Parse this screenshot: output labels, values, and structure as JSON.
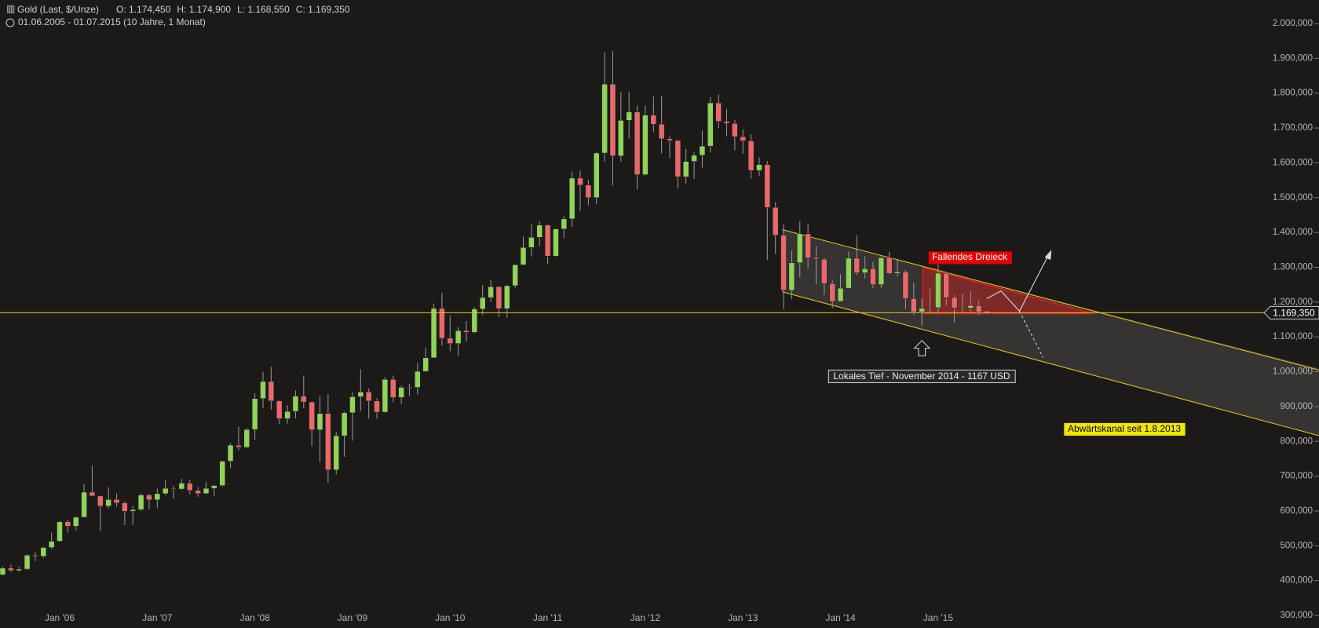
{
  "chart_data": {
    "type": "candlestick",
    "title": "Gold (Last, $/Unze)",
    "header_stats": [
      "O: 1.174,450",
      "H: 1.174,900",
      "L: 1.168,550",
      "C: 1.169,350"
    ],
    "subtitle": "01.06.2005 - 01.07.2015 (10 Jahre, 1 Monat)",
    "categories": [
      null,
      null,
      null,
      null,
      null,
      null,
      null,
      "Jan '06",
      null,
      null,
      null,
      null,
      null,
      null,
      null,
      null,
      null,
      null,
      null,
      "Jan '07",
      null,
      null,
      null,
      null,
      null,
      null,
      null,
      null,
      null,
      null,
      null,
      "Jan '08",
      null,
      null,
      null,
      null,
      null,
      null,
      null,
      null,
      null,
      null,
      null,
      "Jan '09",
      null,
      null,
      null,
      null,
      null,
      null,
      null,
      null,
      null,
      null,
      null,
      "Jan '10",
      null,
      null,
      null,
      null,
      null,
      null,
      null,
      null,
      null,
      null,
      null,
      "Jan '11",
      null,
      null,
      null,
      null,
      null,
      null,
      null,
      null,
      null,
      null,
      null,
      "Jan '12",
      null,
      null,
      null,
      null,
      null,
      null,
      null,
      null,
      null,
      null,
      null,
      "Jan '13",
      null,
      null,
      null,
      null,
      null,
      null,
      null,
      null,
      null,
      null,
      null,
      "Jan '14",
      null,
      null,
      null,
      null,
      null,
      null,
      null,
      null,
      null,
      null,
      null,
      "Jan '15",
      null,
      null,
      null,
      null,
      null,
      null
    ],
    "open": [
      417,
      436,
      429,
      433,
      473,
      470,
      495,
      513,
      569,
      556,
      582,
      654,
      643,
      614,
      633,
      623,
      599,
      604,
      646,
      632,
      650,
      665,
      663,
      680,
      659,
      650,
      665,
      673,
      743,
      789,
      783,
      834,
      923,
      972,
      916,
      865,
      886,
      930,
      913,
      833,
      880,
      718,
      816,
      882,
      928,
      942,
      916,
      884,
      978,
      926,
      955,
      955,
      1001,
      1040,
      1182,
      1096,
      1081,
      1118,
      1113,
      1180,
      1213,
      1244,
      1181,
      1247,
      1307,
      1357,
      1386,
      1421,
      1332,
      1410,
      1439,
      1556,
      1536,
      1500,
      1628,
      1826,
      1620,
      1722,
      1746,
      1566,
      1737,
      1711,
      1669,
      1664,
      1560,
      1604,
      1622,
      1648,
      1772,
      1719,
      1713,
      1675,
      1663,
      1578,
      1595,
      1472,
      1392,
      1234,
      1313,
      1396,
      1327,
      1323,
      1253,
      1202,
      1240,
      1326,
      1284,
      1296,
      1250,
      1327,
      1282,
      1287,
      1210,
      1172,
      1182,
      1184,
      1283,
      1213,
      1183,
      1183,
      1190,
      1174.45
    ],
    "high": [
      441,
      446,
      440,
      476,
      482,
      497,
      538,
      572,
      575,
      585,
      677,
      730,
      645,
      668,
      650,
      628,
      615,
      650,
      650,
      664,
      690,
      672,
      692,
      690,
      669,
      684,
      675,
      745,
      795,
      842,
      838,
      938,
      1000,
      1014,
      918,
      904,
      946,
      989,
      915,
      931,
      935,
      827,
      886,
      941,
      1007,
      952,
      924,
      985,
      989,
      960,
      966,
      1025,
      1070,
      1196,
      1227,
      1162,
      1128,
      1145,
      1186,
      1249,
      1265,
      1246,
      1250,
      1309,
      1388,
      1424,
      1432,
      1424,
      1411,
      1447,
      1575,
      1577,
      1552,
      1632,
      1917,
      1921,
      1804,
      1804,
      1764,
      1764,
      1791,
      1792,
      1676,
      1667,
      1640,
      1631,
      1693,
      1790,
      1796,
      1755,
      1723,
      1696,
      1682,
      1616,
      1605,
      1487,
      1424,
      1348,
      1433,
      1424,
      1361,
      1327,
      1262,
      1280,
      1345,
      1392,
      1331,
      1316,
      1332,
      1345,
      1321,
      1292,
      1255,
      1209,
      1239,
      1308,
      1286,
      1220,
      1224,
      1232,
      1205,
      1174.9
    ],
    "low": [
      414,
      424,
      425,
      430,
      456,
      465,
      490,
      513,
      538,
      544,
      582,
      643,
      542,
      608,
      613,
      560,
      560,
      600,
      605,
      608,
      645,
      636,
      660,
      648,
      641,
      648,
      642,
      670,
      723,
      774,
      780,
      805,
      896,
      891,
      850,
      851,
      866,
      895,
      786,
      740,
      681,
      705,
      756,
      802,
      887,
      866,
      865,
      882,
      912,
      908,
      931,
      935,
      1000,
      1041,
      1075,
      1059,
      1045,
      1087,
      1110,
      1163,
      1200,
      1157,
      1156,
      1240,
      1307,
      1331,
      1360,
      1309,
      1329,
      1383,
      1416,
      1462,
      1478,
      1481,
      1603,
      1535,
      1603,
      1670,
      1523,
      1563,
      1688,
      1627,
      1613,
      1527,
      1540,
      1554,
      1586,
      1630,
      1700,
      1676,
      1636,
      1626,
      1555,
      1562,
      1321,
      1338,
      1180,
      1208,
      1271,
      1297,
      1251,
      1221,
      1182,
      1201,
      1238,
      1277,
      1268,
      1240,
      1240,
      1280,
      1273,
      1180,
      1162,
      1131,
      1170,
      1167,
      1190,
      1142,
      1170,
      1169,
      1162,
      1168.55
    ],
    "close": [
      436,
      429,
      433,
      473,
      470,
      495,
      513,
      569,
      556,
      582,
      654,
      643,
      614,
      633,
      623,
      599,
      604,
      646,
      632,
      650,
      665,
      663,
      680,
      659,
      650,
      665,
      673,
      743,
      789,
      783,
      834,
      923,
      972,
      916,
      865,
      886,
      930,
      913,
      833,
      880,
      718,
      816,
      882,
      928,
      942,
      916,
      884,
      978,
      926,
      955,
      955,
      1001,
      1040,
      1182,
      1096,
      1081,
      1118,
      1113,
      1180,
      1213,
      1244,
      1181,
      1247,
      1307,
      1357,
      1386,
      1421,
      1332,
      1410,
      1439,
      1556,
      1536,
      1500,
      1628,
      1826,
      1620,
      1722,
      1746,
      1566,
      1737,
      1711,
      1669,
      1664,
      1560,
      1604,
      1622,
      1648,
      1772,
      1719,
      1713,
      1675,
      1663,
      1578,
      1595,
      1472,
      1392,
      1234,
      1313,
      1396,
      1327,
      1323,
      1253,
      1202,
      1240,
      1326,
      1284,
      1296,
      1250,
      1327,
      1282,
      1287,
      1210,
      1172,
      1182,
      1184,
      1283,
      1213,
      1183,
      1183,
      1190,
      1172,
      1169.35
    ],
    "up_color": "#8fd35a",
    "down_color": "#e8696b",
    "ylim": [
      300,
      2000
    ],
    "yticks": [
      {
        "value": 300,
        "label": "300,000"
      },
      {
        "value": 400,
        "label": "400,000"
      },
      {
        "value": 500,
        "label": "500,000"
      },
      {
        "value": 600,
        "label": "600,000"
      },
      {
        "value": 700,
        "label": "700,000"
      },
      {
        "value": 800,
        "label": "800,000"
      },
      {
        "value": 900,
        "label": "900,000"
      },
      {
        "value": 1000,
        "label": "1.000,000"
      },
      {
        "value": 1100,
        "label": "1.100,000"
      },
      {
        "value": 1200,
        "label": "1.200,000"
      },
      {
        "value": 1300,
        "label": "1.300,000"
      },
      {
        "value": 1400,
        "label": "1.400,000"
      },
      {
        "value": 1500,
        "label": "1.500,000"
      },
      {
        "value": 1600,
        "label": "1.600,000"
      },
      {
        "value": 1700,
        "label": "1.700,000"
      },
      {
        "value": 1800,
        "label": "1.800,000"
      },
      {
        "value": 1900,
        "label": "1.900,000"
      },
      {
        "value": 2000,
        "label": "2.000,000"
      }
    ],
    "last_price": {
      "value": 1169.35,
      "label": "1.169,350"
    },
    "annotations": [
      "Fallendes Dreieck",
      "Lokales Tief - November 2014 - 1167 USD",
      "Abwärtskanal seit 1.8.2013"
    ]
  }
}
